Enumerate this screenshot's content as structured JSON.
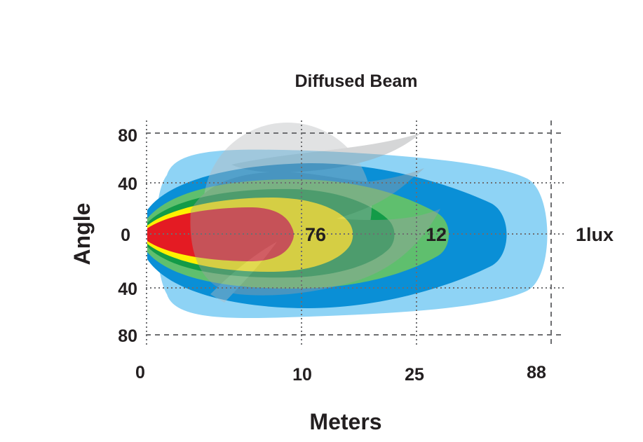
{
  "chart_data": {
    "type": "area",
    "title": "Diffused Beam",
    "xlabel": "Meters",
    "ylabel": "Angle",
    "x_ticks": [
      "0",
      "10",
      "25",
      "88"
    ],
    "y_ticks": [
      "80",
      "40",
      "0",
      "40",
      "80"
    ],
    "ylim": [
      -80,
      80
    ],
    "grid": true,
    "zones": [
      {
        "label": "1lux",
        "reach": 88,
        "color": "#8ed3f5"
      },
      {
        "reach": 60,
        "color": "#0a8fd6"
      },
      {
        "label": "12",
        "reach": 25,
        "color": "#5fbf6e"
      },
      {
        "reach": 18,
        "color": "#139b48"
      },
      {
        "label": "76",
        "reach": 13,
        "color": "#fff100"
      },
      {
        "reach": 9,
        "color": "#e41b23"
      }
    ],
    "colors": {
      "overlay": "#9d9fa2",
      "text": "#231f20",
      "grid": "#6d6e71"
    }
  }
}
